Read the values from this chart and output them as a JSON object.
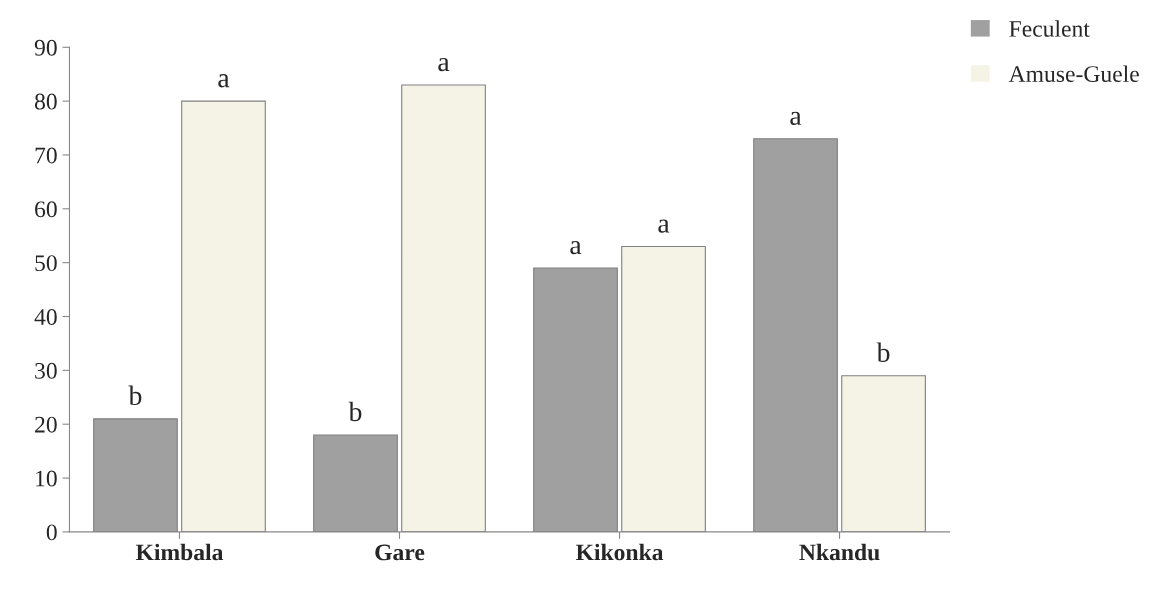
{
  "chart_data": {
    "type": "bar",
    "categories": [
      "Kimbala",
      "Gare",
      "Kikonka",
      "Nkandu"
    ],
    "series": [
      {
        "name": "Feculent",
        "color": "#a0a0a0",
        "values": [
          21,
          18,
          49,
          73
        ]
      },
      {
        "name": "Amuse-Guele",
        "color": "#f5f3e6",
        "values": [
          80,
          83,
          53,
          29
        ]
      }
    ],
    "ylim": [
      0,
      90
    ],
    "yticks": [
      0,
      10,
      20,
      30,
      40,
      50,
      60,
      70,
      80,
      90
    ],
    "grid": false,
    "legend": "top right",
    "annotations": [
      {
        "text": "b",
        "x": "Kimbala",
        "y": 21
      },
      {
        "text": "a",
        "x": "Kimbala",
        "y": 80
      },
      {
        "text": "b",
        "x": "Gare",
        "y": 18
      },
      {
        "text": "a",
        "x": "Gare",
        "y": 83
      },
      {
        "text": "a",
        "x": "Kikonka",
        "y": 49
      },
      {
        "text": "a",
        "x": "Kikonka",
        "y": 53
      },
      {
        "text": "a",
        "x": "Nkandu",
        "y": 73
      },
      {
        "text": "b",
        "x": "Nkandu",
        "y": 29
      }
    ]
  }
}
